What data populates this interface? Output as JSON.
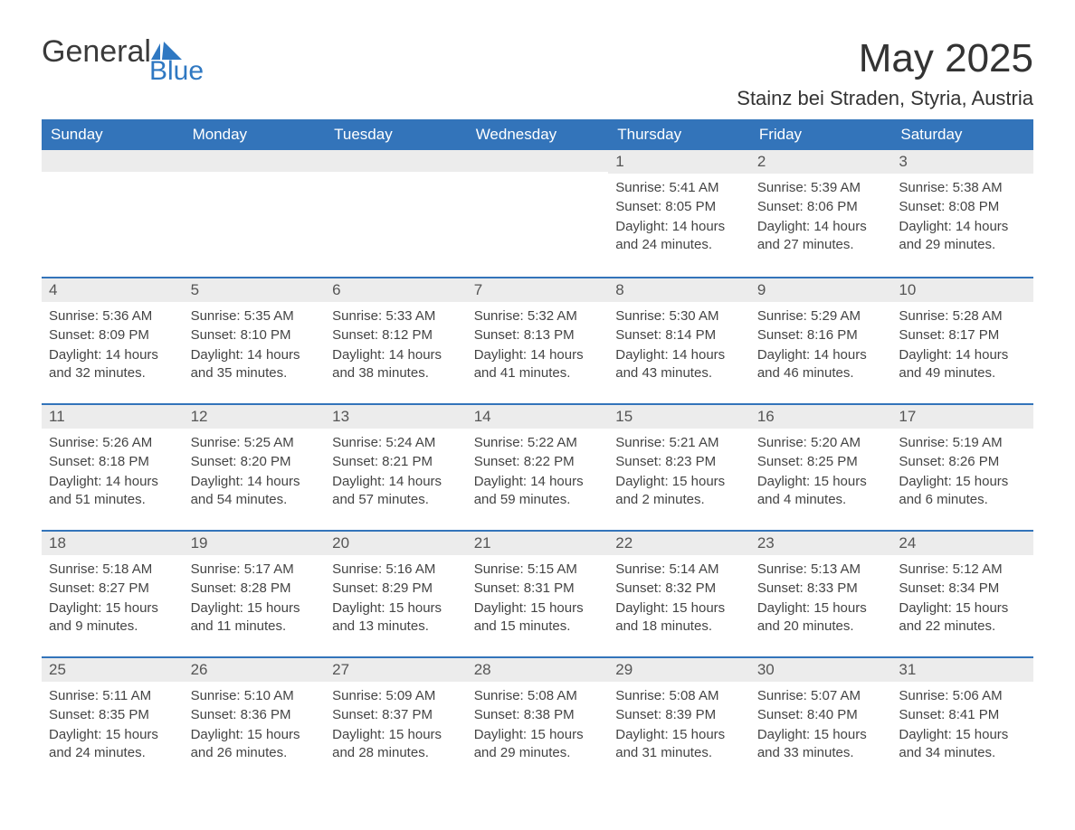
{
  "brand": {
    "word1": "General",
    "word2": "Blue"
  },
  "title": "May 2025",
  "location": "Stainz bei Straden, Styria, Austria",
  "colors": {
    "header_bg": "#3374ba",
    "header_text": "#ffffff",
    "daynum_bg": "#ececec",
    "rule": "#3374ba",
    "body_text": "#444444",
    "page_bg": "#ffffff",
    "logo_blue": "#2f78c2"
  },
  "day_names": [
    "Sunday",
    "Monday",
    "Tuesday",
    "Wednesday",
    "Thursday",
    "Friday",
    "Saturday"
  ],
  "weeks": [
    [
      null,
      null,
      null,
      null,
      {
        "day": "1",
        "sunrise": "Sunrise: 5:41 AM",
        "sunset": "Sunset: 8:05 PM",
        "daylight": "Daylight: 14 hours and 24 minutes."
      },
      {
        "day": "2",
        "sunrise": "Sunrise: 5:39 AM",
        "sunset": "Sunset: 8:06 PM",
        "daylight": "Daylight: 14 hours and 27 minutes."
      },
      {
        "day": "3",
        "sunrise": "Sunrise: 5:38 AM",
        "sunset": "Sunset: 8:08 PM",
        "daylight": "Daylight: 14 hours and 29 minutes."
      }
    ],
    [
      {
        "day": "4",
        "sunrise": "Sunrise: 5:36 AM",
        "sunset": "Sunset: 8:09 PM",
        "daylight": "Daylight: 14 hours and 32 minutes."
      },
      {
        "day": "5",
        "sunrise": "Sunrise: 5:35 AM",
        "sunset": "Sunset: 8:10 PM",
        "daylight": "Daylight: 14 hours and 35 minutes."
      },
      {
        "day": "6",
        "sunrise": "Sunrise: 5:33 AM",
        "sunset": "Sunset: 8:12 PM",
        "daylight": "Daylight: 14 hours and 38 minutes."
      },
      {
        "day": "7",
        "sunrise": "Sunrise: 5:32 AM",
        "sunset": "Sunset: 8:13 PM",
        "daylight": "Daylight: 14 hours and 41 minutes."
      },
      {
        "day": "8",
        "sunrise": "Sunrise: 5:30 AM",
        "sunset": "Sunset: 8:14 PM",
        "daylight": "Daylight: 14 hours and 43 minutes."
      },
      {
        "day": "9",
        "sunrise": "Sunrise: 5:29 AM",
        "sunset": "Sunset: 8:16 PM",
        "daylight": "Daylight: 14 hours and 46 minutes."
      },
      {
        "day": "10",
        "sunrise": "Sunrise: 5:28 AM",
        "sunset": "Sunset: 8:17 PM",
        "daylight": "Daylight: 14 hours and 49 minutes."
      }
    ],
    [
      {
        "day": "11",
        "sunrise": "Sunrise: 5:26 AM",
        "sunset": "Sunset: 8:18 PM",
        "daylight": "Daylight: 14 hours and 51 minutes."
      },
      {
        "day": "12",
        "sunrise": "Sunrise: 5:25 AM",
        "sunset": "Sunset: 8:20 PM",
        "daylight": "Daylight: 14 hours and 54 minutes."
      },
      {
        "day": "13",
        "sunrise": "Sunrise: 5:24 AM",
        "sunset": "Sunset: 8:21 PM",
        "daylight": "Daylight: 14 hours and 57 minutes."
      },
      {
        "day": "14",
        "sunrise": "Sunrise: 5:22 AM",
        "sunset": "Sunset: 8:22 PM",
        "daylight": "Daylight: 14 hours and 59 minutes."
      },
      {
        "day": "15",
        "sunrise": "Sunrise: 5:21 AM",
        "sunset": "Sunset: 8:23 PM",
        "daylight": "Daylight: 15 hours and 2 minutes."
      },
      {
        "day": "16",
        "sunrise": "Sunrise: 5:20 AM",
        "sunset": "Sunset: 8:25 PM",
        "daylight": "Daylight: 15 hours and 4 minutes."
      },
      {
        "day": "17",
        "sunrise": "Sunrise: 5:19 AM",
        "sunset": "Sunset: 8:26 PM",
        "daylight": "Daylight: 15 hours and 6 minutes."
      }
    ],
    [
      {
        "day": "18",
        "sunrise": "Sunrise: 5:18 AM",
        "sunset": "Sunset: 8:27 PM",
        "daylight": "Daylight: 15 hours and 9 minutes."
      },
      {
        "day": "19",
        "sunrise": "Sunrise: 5:17 AM",
        "sunset": "Sunset: 8:28 PM",
        "daylight": "Daylight: 15 hours and 11 minutes."
      },
      {
        "day": "20",
        "sunrise": "Sunrise: 5:16 AM",
        "sunset": "Sunset: 8:29 PM",
        "daylight": "Daylight: 15 hours and 13 minutes."
      },
      {
        "day": "21",
        "sunrise": "Sunrise: 5:15 AM",
        "sunset": "Sunset: 8:31 PM",
        "daylight": "Daylight: 15 hours and 15 minutes."
      },
      {
        "day": "22",
        "sunrise": "Sunrise: 5:14 AM",
        "sunset": "Sunset: 8:32 PM",
        "daylight": "Daylight: 15 hours and 18 minutes."
      },
      {
        "day": "23",
        "sunrise": "Sunrise: 5:13 AM",
        "sunset": "Sunset: 8:33 PM",
        "daylight": "Daylight: 15 hours and 20 minutes."
      },
      {
        "day": "24",
        "sunrise": "Sunrise: 5:12 AM",
        "sunset": "Sunset: 8:34 PM",
        "daylight": "Daylight: 15 hours and 22 minutes."
      }
    ],
    [
      {
        "day": "25",
        "sunrise": "Sunrise: 5:11 AM",
        "sunset": "Sunset: 8:35 PM",
        "daylight": "Daylight: 15 hours and 24 minutes."
      },
      {
        "day": "26",
        "sunrise": "Sunrise: 5:10 AM",
        "sunset": "Sunset: 8:36 PM",
        "daylight": "Daylight: 15 hours and 26 minutes."
      },
      {
        "day": "27",
        "sunrise": "Sunrise: 5:09 AM",
        "sunset": "Sunset: 8:37 PM",
        "daylight": "Daylight: 15 hours and 28 minutes."
      },
      {
        "day": "28",
        "sunrise": "Sunrise: 5:08 AM",
        "sunset": "Sunset: 8:38 PM",
        "daylight": "Daylight: 15 hours and 29 minutes."
      },
      {
        "day": "29",
        "sunrise": "Sunrise: 5:08 AM",
        "sunset": "Sunset: 8:39 PM",
        "daylight": "Daylight: 15 hours and 31 minutes."
      },
      {
        "day": "30",
        "sunrise": "Sunrise: 5:07 AM",
        "sunset": "Sunset: 8:40 PM",
        "daylight": "Daylight: 15 hours and 33 minutes."
      },
      {
        "day": "31",
        "sunrise": "Sunrise: 5:06 AM",
        "sunset": "Sunset: 8:41 PM",
        "daylight": "Daylight: 15 hours and 34 minutes."
      }
    ]
  ]
}
